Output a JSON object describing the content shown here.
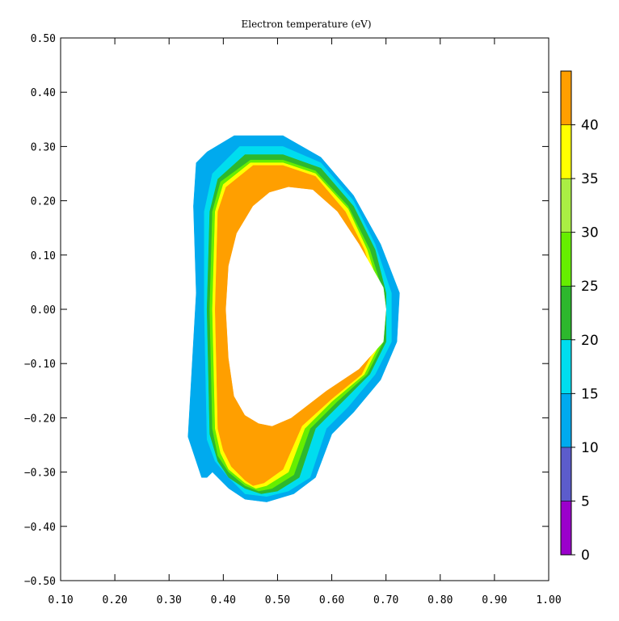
{
  "chart_data": {
    "type": "contour",
    "title": "Electron temperature (eV)",
    "xlim": [
      0.1,
      1.0
    ],
    "ylim": [
      -0.5,
      0.5
    ],
    "x_ticks": [
      "0.10",
      "0.20",
      "0.30",
      "0.40",
      "0.50",
      "0.60",
      "0.70",
      "0.80",
      "0.90",
      "1.00"
    ],
    "y_ticks": [
      "0.50",
      "0.40",
      "0.30",
      "0.20",
      "0.10",
      "0.00",
      "−0.10",
      "−0.20",
      "−0.30",
      "−0.40",
      "−0.50"
    ],
    "colorbar": {
      "levels": [
        0,
        5,
        10,
        15,
        20,
        25,
        30,
        35,
        40,
        45
      ],
      "tick_labels": [
        "0",
        "5",
        "10",
        "15",
        "20",
        "25",
        "30",
        "35",
        "40"
      ],
      "colors": [
        "#9b00cc",
        "#5c5ccc",
        "#00aaee",
        "#00ddee",
        "#2db82d",
        "#66ee00",
        "#aaee44",
        "#ffff00",
        "#ff9f00"
      ]
    },
    "regions": [
      {
        "level": "10-15",
        "color": "#00aaee",
        "boundary": [
          [
            0.42,
            0.32
          ],
          [
            0.51,
            0.32
          ],
          [
            0.58,
            0.28
          ],
          [
            0.64,
            0.21
          ],
          [
            0.69,
            0.12
          ],
          [
            0.725,
            0.03
          ],
          [
            0.72,
            -0.06
          ],
          [
            0.69,
            -0.13
          ],
          [
            0.64,
            -0.19
          ],
          [
            0.6,
            -0.23
          ],
          [
            0.57,
            -0.31
          ],
          [
            0.53,
            -0.34
          ],
          [
            0.48,
            -0.355
          ],
          [
            0.44,
            -0.35
          ],
          [
            0.41,
            -0.33
          ],
          [
            0.38,
            -0.3
          ],
          [
            0.37,
            -0.31
          ],
          [
            0.36,
            -0.31
          ],
          [
            0.35,
            -0.28
          ],
          [
            0.335,
            -0.235
          ],
          [
            0.35,
            0.03
          ],
          [
            0.345,
            0.19
          ],
          [
            0.35,
            0.27
          ],
          [
            0.37,
            0.29
          ]
        ]
      },
      {
        "level": "15-20",
        "color": "#00ddee",
        "boundary": [
          [
            0.43,
            0.3
          ],
          [
            0.51,
            0.3
          ],
          [
            0.58,
            0.27
          ],
          [
            0.64,
            0.2
          ],
          [
            0.68,
            0.12
          ],
          [
            0.71,
            0.03
          ],
          [
            0.71,
            -0.06
          ],
          [
            0.68,
            -0.12
          ],
          [
            0.63,
            -0.18
          ],
          [
            0.59,
            -0.22
          ],
          [
            0.56,
            -0.31
          ],
          [
            0.52,
            -0.335
          ],
          [
            0.48,
            -0.345
          ],
          [
            0.44,
            -0.34
          ],
          [
            0.41,
            -0.31
          ],
          [
            0.385,
            -0.28
          ],
          [
            0.37,
            -0.24
          ],
          [
            0.365,
            0.0
          ],
          [
            0.365,
            0.18
          ],
          [
            0.38,
            0.25
          ]
        ]
      },
      {
        "level": "20-25",
        "color": "#2db82d",
        "boundary": [
          [
            0.44,
            0.285
          ],
          [
            0.51,
            0.285
          ],
          [
            0.58,
            0.26
          ],
          [
            0.64,
            0.19
          ],
          [
            0.68,
            0.11
          ],
          [
            0.7,
            0.03
          ],
          [
            0.7,
            -0.06
          ],
          [
            0.67,
            -0.12
          ],
          [
            0.62,
            -0.17
          ],
          [
            0.57,
            -0.22
          ],
          [
            0.54,
            -0.31
          ],
          [
            0.5,
            -0.335
          ],
          [
            0.47,
            -0.34
          ],
          [
            0.44,
            -0.33
          ],
          [
            0.41,
            -0.31
          ],
          [
            0.39,
            -0.28
          ],
          [
            0.375,
            -0.23
          ],
          [
            0.37,
            0.0
          ],
          [
            0.375,
            0.18
          ],
          [
            0.39,
            0.24
          ]
        ]
      },
      {
        "level": "25-30",
        "color": "#66ee00",
        "boundary": [
          [
            0.45,
            0.275
          ],
          [
            0.51,
            0.275
          ],
          [
            0.57,
            0.255
          ],
          [
            0.63,
            0.19
          ],
          [
            0.67,
            0.11
          ],
          [
            0.695,
            0.03
          ],
          [
            0.695,
            -0.06
          ],
          [
            0.665,
            -0.12
          ],
          [
            0.61,
            -0.17
          ],
          [
            0.56,
            -0.22
          ],
          [
            0.53,
            -0.305
          ],
          [
            0.49,
            -0.33
          ],
          [
            0.465,
            -0.335
          ],
          [
            0.44,
            -0.325
          ],
          [
            0.41,
            -0.3
          ],
          [
            0.39,
            -0.27
          ],
          [
            0.38,
            -0.22
          ],
          [
            0.375,
            0.0
          ],
          [
            0.38,
            0.18
          ],
          [
            0.395,
            0.235
          ]
        ]
      },
      {
        "level": "35-40",
        "color": "#ffff00",
        "boundary": [
          [
            0.45,
            0.27
          ],
          [
            0.51,
            0.27
          ],
          [
            0.57,
            0.25
          ],
          [
            0.63,
            0.185
          ],
          [
            0.665,
            0.11
          ],
          [
            0.69,
            0.03
          ],
          [
            0.69,
            -0.06
          ],
          [
            0.66,
            -0.12
          ],
          [
            0.6,
            -0.17
          ],
          [
            0.55,
            -0.22
          ],
          [
            0.52,
            -0.3
          ],
          [
            0.48,
            -0.325
          ],
          [
            0.46,
            -0.33
          ],
          [
            0.44,
            -0.32
          ],
          [
            0.41,
            -0.295
          ],
          [
            0.395,
            -0.265
          ],
          [
            0.385,
            -0.22
          ],
          [
            0.38,
            0.0
          ],
          [
            0.385,
            0.18
          ],
          [
            0.4,
            0.23
          ]
        ]
      },
      {
        "level": "40-45",
        "color": "#ff9f00",
        "boundary": [
          [
            0.455,
            0.265
          ],
          [
            0.51,
            0.265
          ],
          [
            0.57,
            0.245
          ],
          [
            0.625,
            0.18
          ],
          [
            0.66,
            0.11
          ],
          [
            0.685,
            0.03
          ],
          [
            0.685,
            -0.06
          ],
          [
            0.655,
            -0.12
          ],
          [
            0.6,
            -0.165
          ],
          [
            0.545,
            -0.215
          ],
          [
            0.51,
            -0.295
          ],
          [
            0.475,
            -0.32
          ],
          [
            0.455,
            -0.325
          ],
          [
            0.44,
            -0.315
          ],
          [
            0.415,
            -0.29
          ],
          [
            0.4,
            -0.26
          ],
          [
            0.39,
            -0.22
          ],
          [
            0.385,
            0.0
          ],
          [
            0.39,
            0.18
          ],
          [
            0.405,
            0.225
          ]
        ]
      },
      {
        "level": "inner",
        "color": "#ffffff",
        "boundary": [
          [
            0.52,
            0.225
          ],
          [
            0.565,
            0.22
          ],
          [
            0.61,
            0.18
          ],
          [
            0.65,
            0.12
          ],
          [
            0.695,
            0.04
          ],
          [
            0.7,
            0.0
          ],
          [
            0.695,
            -0.06
          ],
          [
            0.65,
            -0.11
          ],
          [
            0.59,
            -0.15
          ],
          [
            0.525,
            -0.2
          ],
          [
            0.49,
            -0.215
          ],
          [
            0.465,
            -0.21
          ],
          [
            0.44,
            -0.195
          ],
          [
            0.42,
            -0.16
          ],
          [
            0.41,
            -0.09
          ],
          [
            0.405,
            0.0
          ],
          [
            0.41,
            0.08
          ],
          [
            0.425,
            0.14
          ],
          [
            0.455,
            0.19
          ],
          [
            0.485,
            0.215
          ]
        ]
      }
    ]
  }
}
